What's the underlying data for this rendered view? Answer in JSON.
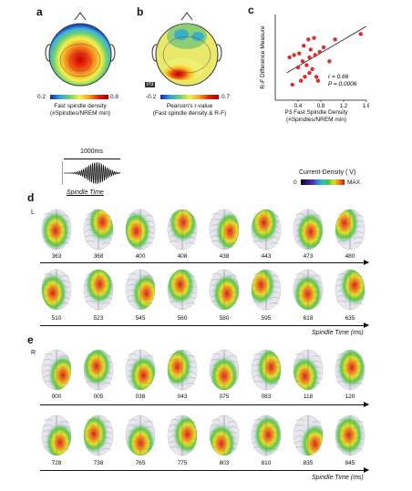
{
  "panel_a": {
    "letter": "a",
    "colorbar": {
      "min": "0.2",
      "max": "0.8"
    },
    "caption_line1": "Fast spindle density",
    "caption_line2": "(#Spindles/NREM min)"
  },
  "panel_b": {
    "letter": "b",
    "electrode_label": "P3",
    "colorbar": {
      "min": "-0.2",
      "max": "0.7"
    },
    "caption_line1": "Pearson's r-value",
    "caption_line2": "(Fast spindle density & R-F)"
  },
  "panel_c": {
    "letter": "c",
    "stats_r": "r = 0.66",
    "stats_p": "P = 0.0006"
  },
  "spindle": {
    "duration": "1000ms",
    "label": "Spindle Time"
  },
  "current_density": {
    "title": "Current-Density ( V)",
    "min": "0",
    "max": "MAX"
  },
  "panel_d": {
    "letter": "d",
    "hemisphere": "L",
    "row1": [
      "363",
      "368",
      "400",
      "408",
      "438",
      "443",
      "473",
      "480"
    ],
    "row2": [
      "510",
      "523",
      "545",
      "560",
      "580",
      "595",
      "618",
      "635"
    ],
    "axis_label": "Spindle Time (ms)"
  },
  "panel_e": {
    "letter": "e",
    "hemisphere": "R",
    "row1": [
      "000",
      "005",
      "038",
      "043",
      "075",
      "083",
      "118",
      "120"
    ],
    "row2": [
      "728",
      "738",
      "765",
      "775",
      "803",
      "810",
      "835",
      "845"
    ],
    "axis_label": "Spindle Time (ms)"
  },
  "chart_data": {
    "type": "scatter",
    "title": "",
    "xlabel": "P3 Fast Spindle Density (#Spindles/NREM min)",
    "ylabel": "R-F Difference Measure",
    "xlim": [
      0,
      1.6
    ],
    "ylim": [
      0,
      1.1
    ],
    "xticks": [
      "0.4",
      "0.8",
      "1.2",
      "1.6"
    ],
    "x": [
      0.25,
      0.3,
      0.33,
      0.4,
      0.42,
      0.45,
      0.48,
      0.5,
      0.52,
      0.55,
      0.58,
      0.6,
      0.6,
      0.62,
      0.65,
      0.68,
      0.7,
      0.72,
      0.75,
      0.78,
      0.85,
      0.95,
      1.05,
      1.5
    ],
    "y": [
      0.55,
      0.2,
      0.58,
      0.42,
      0.6,
      0.25,
      0.5,
      0.7,
      0.3,
      0.45,
      0.78,
      0.55,
      0.35,
      0.65,
      0.4,
      0.8,
      0.58,
      0.3,
      0.25,
      0.62,
      0.68,
      0.5,
      0.78,
      0.85
    ],
    "fit_line": {
      "x": [
        0.2,
        1.6
      ],
      "y": [
        0.35,
        0.95
      ]
    }
  },
  "colors": {
    "dot": "#d9302a",
    "line": "#111111"
  }
}
